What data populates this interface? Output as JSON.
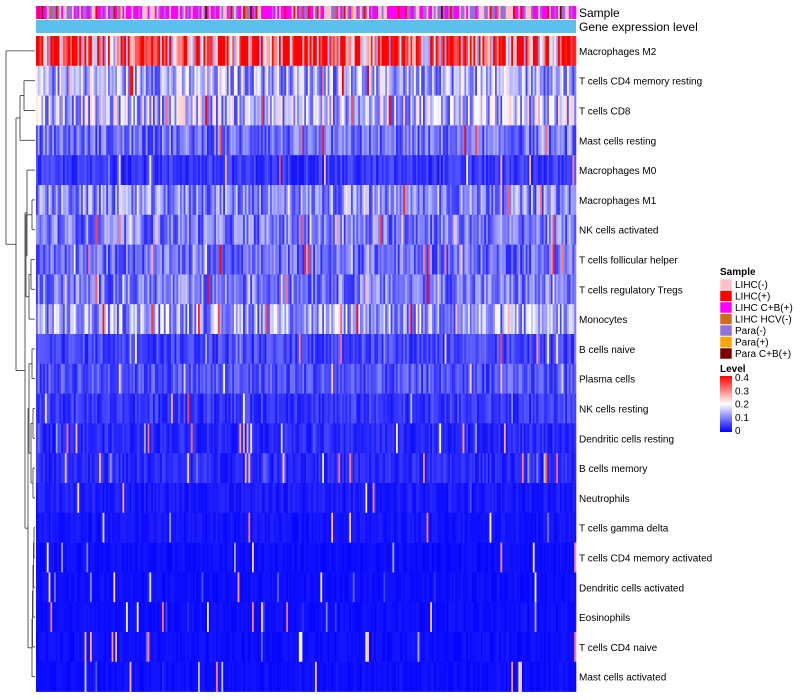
{
  "chart_data": {
    "type": "heatmap",
    "annotation_tracks": [
      "Sample",
      "Gene expression level"
    ],
    "rows": [
      "Macrophages M2",
      "T cells CD4 memory resting",
      "T cells CD8",
      "Mast cells resting",
      "Macrophages M0",
      "Macrophages M1",
      "NK cells activated",
      "T cells follicular helper",
      "T cells regulatory  Tregs",
      "Monocytes",
      "B cells naive",
      "Plasma cells",
      "NK cells resting",
      "Dendritic cells resting",
      "B cells memory",
      "Neutrophils",
      "T cells gamma delta",
      "T cells CD4 memory activated",
      "Dendritic cells activated",
      "Eosinophils",
      "T cells CD4 naive",
      "Mast cells activated"
    ],
    "row_mean_level": [
      0.32,
      0.13,
      0.14,
      0.08,
      0.04,
      0.1,
      0.09,
      0.08,
      0.09,
      0.12,
      0.05,
      0.06,
      0.04,
      0.03,
      0.03,
      0.02,
      0.015,
      0.01,
      0.01,
      0.01,
      0.01,
      0.01
    ],
    "n_samples": 300,
    "legend": {
      "sample": {
        "title": "Sample",
        "items": [
          {
            "label": "LIHC(-)",
            "color": "#ffc0cb"
          },
          {
            "label": "LIHC(+)",
            "color": "#ff0000"
          },
          {
            "label": "LIHC C+B(+)",
            "color": "#ff00ff"
          },
          {
            "label": "LIHC HCV(-)",
            "color": "#d2691e"
          },
          {
            "label": "Para(-)",
            "color": "#9370db"
          },
          {
            "label": "Para(+)",
            "color": "#ffa500"
          },
          {
            "label": "Para C+B(+)",
            "color": "#800000"
          }
        ]
      },
      "level": {
        "title": "Level",
        "ticks": [
          "0.4",
          "0.3",
          "0.2",
          "0.1",
          "0"
        ],
        "range": [
          0,
          0.4
        ],
        "colors": [
          "#0000ff",
          "#ffffff",
          "#ff0000"
        ]
      }
    },
    "gene_expression_color": "#5bc0eb",
    "dendrogram": "row-clustering"
  }
}
